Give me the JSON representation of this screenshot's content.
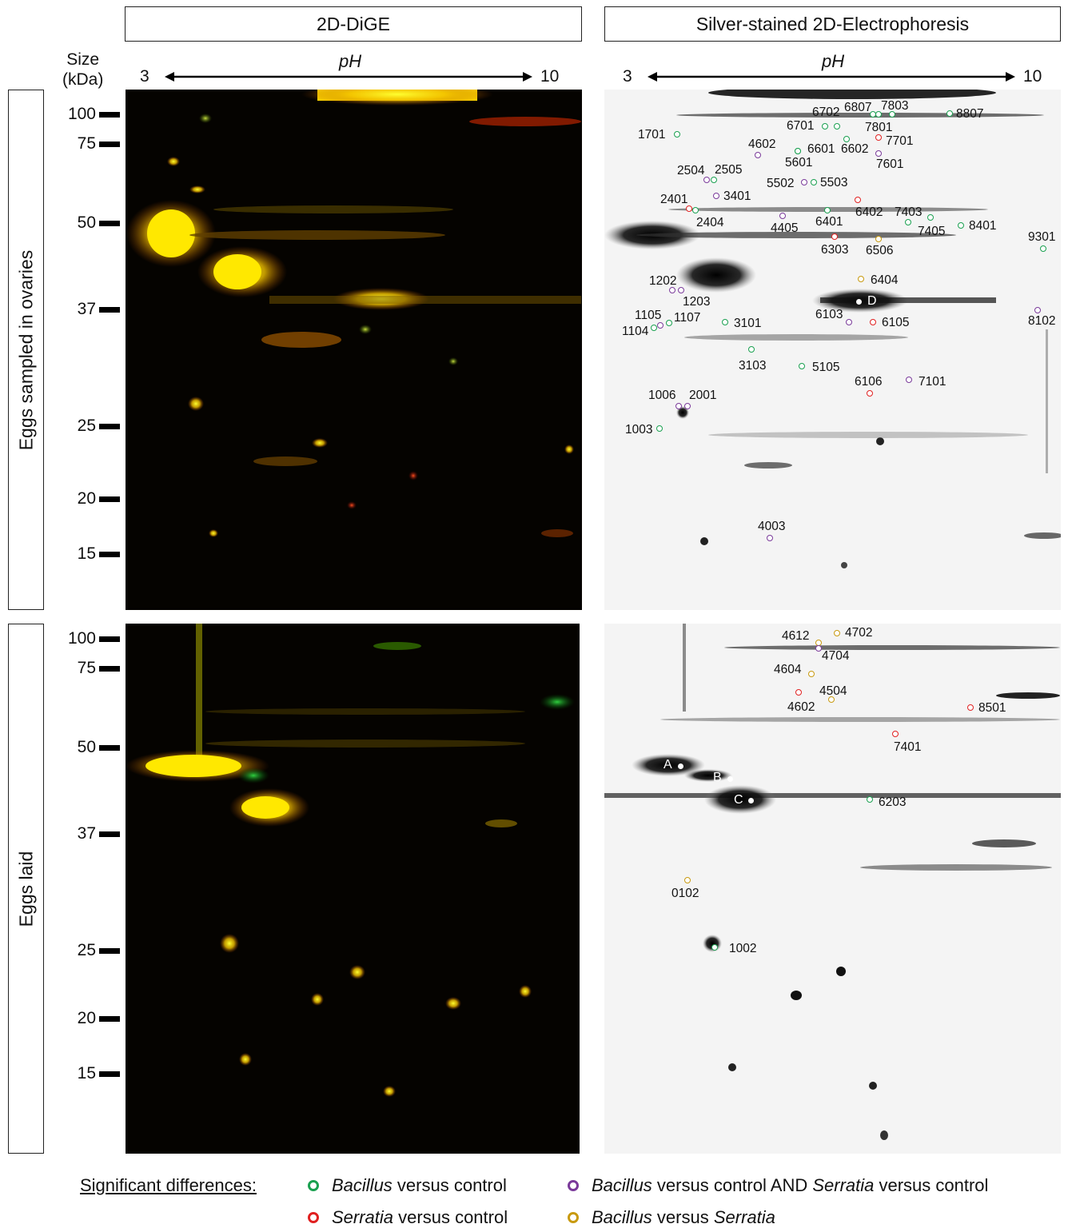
{
  "headers": {
    "dige": "2D-DiGE",
    "silver": "Silver-stained 2D-Electrophoresis"
  },
  "rows": {
    "ovaries": "Eggs sampled in ovaries",
    "laid": "Eggs laid"
  },
  "axis": {
    "ph_label": "pH",
    "ph_min": "3",
    "ph_max": "10",
    "size_label_1": "Size",
    "size_label_2": "(kDa)",
    "size_ticks": [
      "100",
      "75",
      "50",
      "37",
      "25",
      "20",
      "15"
    ]
  },
  "colors": {
    "bacillus": "#1aa050",
    "serratia": "#e02020",
    "both": "#7a3a9a",
    "bac_vs_ser": "#c89a10"
  },
  "legend": {
    "title": "Significant differences:",
    "items": [
      {
        "italic": "Bacillus",
        "text": " versus control"
      },
      {
        "italic": "Serratia",
        "text": " versus control"
      },
      {
        "italic": "Bacillus",
        "text": " versus control AND ",
        "italic2": "Serratia",
        "text2": " versus control"
      },
      {
        "italic": "Bacillus",
        "text": " versus ",
        "italic2": "Serratia",
        "text2": ""
      }
    ]
  },
  "spots_top": [
    {
      "id": "8807",
      "c": "bacillus"
    },
    {
      "id": "6702",
      "c": "bacillus"
    },
    {
      "id": "6807",
      "c": "bacillus"
    },
    {
      "id": "7803",
      "c": "bacillus"
    },
    {
      "id": "1701",
      "c": "bacillus"
    },
    {
      "id": "6701",
      "c": "bacillus"
    },
    {
      "id": "7801",
      "c": "bacillus"
    },
    {
      "id": "7701",
      "c": "serratia"
    },
    {
      "id": "4602",
      "c": "both"
    },
    {
      "id": "6601",
      "c": "bacillus"
    },
    {
      "id": "6602",
      "c": "bacillus"
    },
    {
      "id": "5601",
      "c": "bacillus"
    },
    {
      "id": "7601",
      "c": "both"
    },
    {
      "id": "2504",
      "c": "both"
    },
    {
      "id": "2505",
      "c": "bacillus"
    },
    {
      "id": "5502",
      "c": "both"
    },
    {
      "id": "5503",
      "c": "bacillus"
    },
    {
      "id": "3401",
      "c": "both"
    },
    {
      "id": "2401",
      "c": "serratia"
    },
    {
      "id": "6402",
      "c": "serratia"
    },
    {
      "id": "7403",
      "c": "bacillus"
    },
    {
      "id": "2404",
      "c": "bacillus"
    },
    {
      "id": "6401",
      "c": "bacillus"
    },
    {
      "id": "4405",
      "c": "both"
    },
    {
      "id": "7405",
      "c": "bacillus"
    },
    {
      "id": "8401",
      "c": "bacillus"
    },
    {
      "id": "9301",
      "c": "bacillus"
    },
    {
      "id": "6303",
      "c": "serratia"
    },
    {
      "id": "6506",
      "c": "bac_vs_ser"
    },
    {
      "id": "6404",
      "c": "bac_vs_ser"
    },
    {
      "id": "1202",
      "c": "both"
    },
    {
      "id": "1203",
      "c": "both"
    },
    {
      "id": "D",
      "c": "white"
    },
    {
      "id": "1105",
      "c": "both"
    },
    {
      "id": "1107",
      "c": "bacillus"
    },
    {
      "id": "1104",
      "c": "bacillus"
    },
    {
      "id": "3101",
      "c": "bacillus"
    },
    {
      "id": "6103",
      "c": "both"
    },
    {
      "id": "6105",
      "c": "serratia"
    },
    {
      "id": "8102",
      "c": "both"
    },
    {
      "id": "3103",
      "c": "bacillus"
    },
    {
      "id": "5105",
      "c": "bacillus"
    },
    {
      "id": "6106",
      "c": "serratia"
    },
    {
      "id": "7101",
      "c": "both"
    },
    {
      "id": "1006",
      "c": "both"
    },
    {
      "id": "2001",
      "c": "both"
    },
    {
      "id": "1003",
      "c": "bacillus"
    },
    {
      "id": "4003",
      "c": "both"
    }
  ],
  "spots_bottom": [
    {
      "id": "4612",
      "c": "bac_vs_ser"
    },
    {
      "id": "4702",
      "c": "bac_vs_ser"
    },
    {
      "id": "4704",
      "c": "both"
    },
    {
      "id": "4604",
      "c": "bac_vs_ser"
    },
    {
      "id": "4504",
      "c": "bac_vs_ser"
    },
    {
      "id": "4602",
      "c": "serratia"
    },
    {
      "id": "8501",
      "c": "serratia"
    },
    {
      "id": "7401",
      "c": "serratia"
    },
    {
      "id": "A",
      "c": "white"
    },
    {
      "id": "B",
      "c": "white"
    },
    {
      "id": "C",
      "c": "white"
    },
    {
      "id": "6203",
      "c": "bacillus"
    },
    {
      "id": "0102",
      "c": "bac_vs_ser"
    },
    {
      "id": "1002",
      "c": "bacillus"
    }
  ]
}
